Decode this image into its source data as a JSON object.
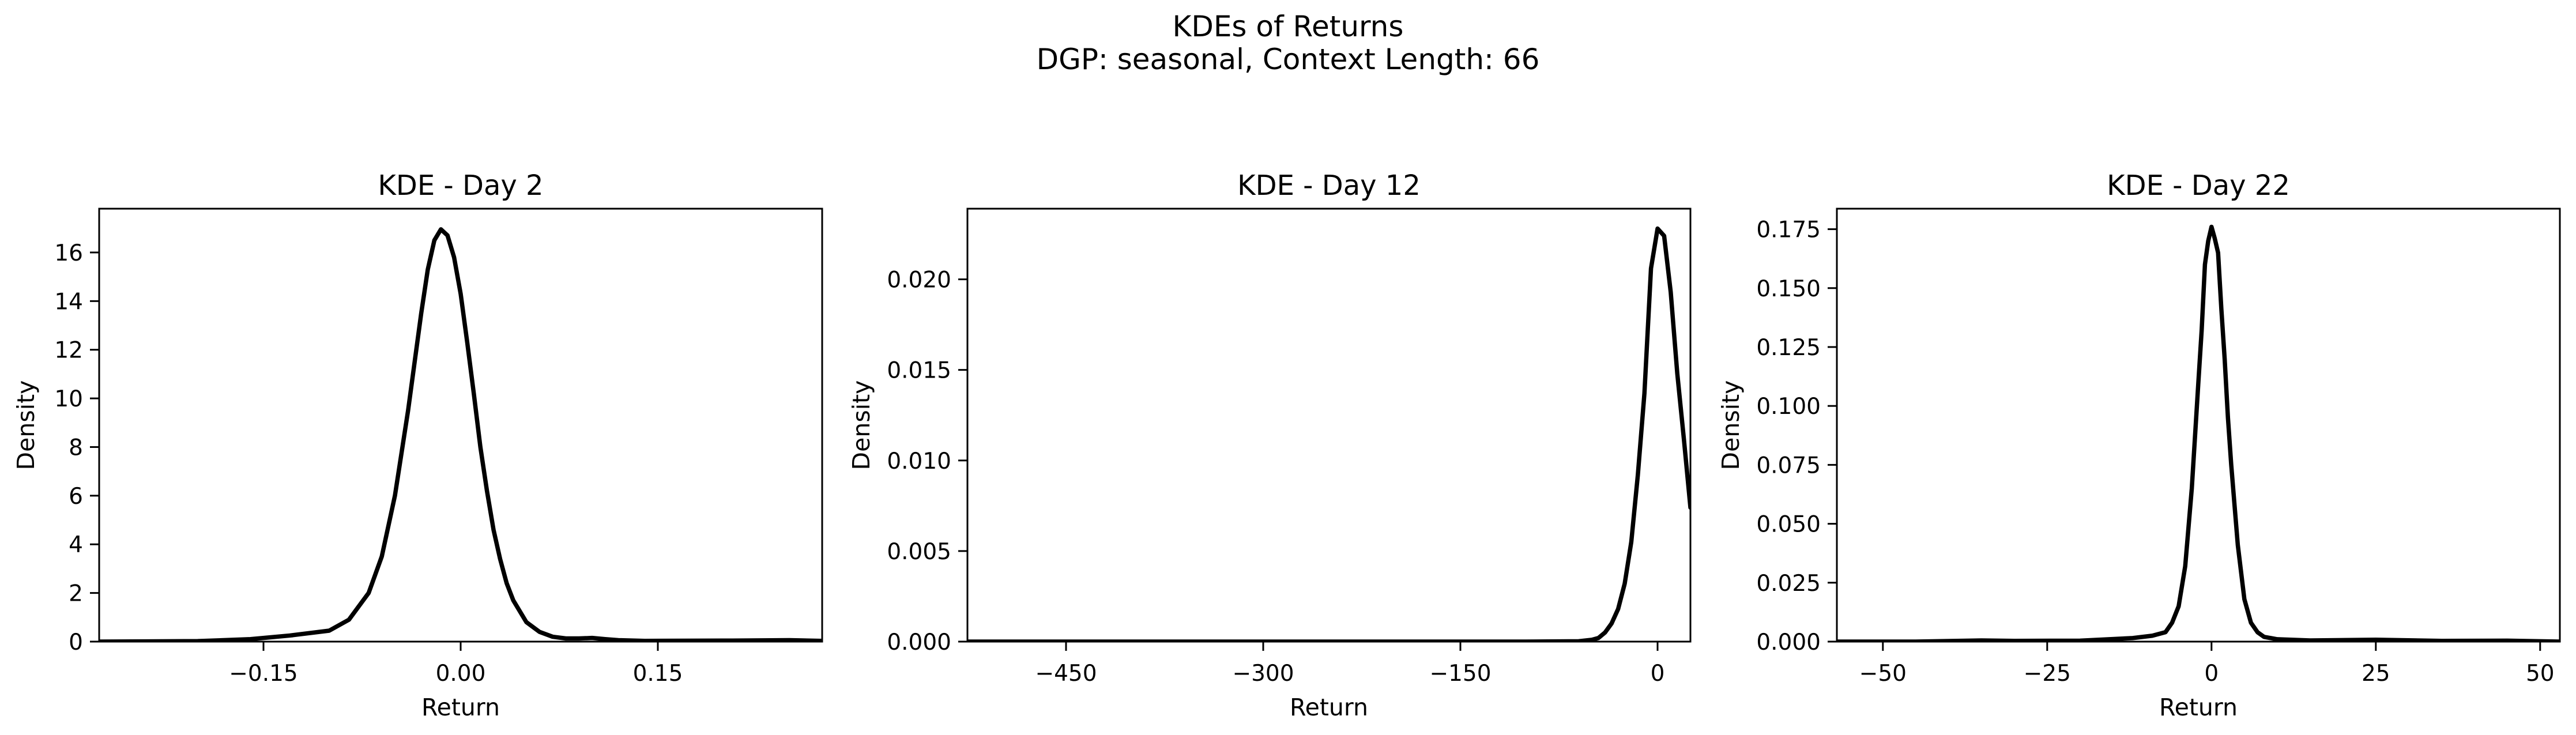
{
  "figure": {
    "title_line1": "KDEs of Returns",
    "title_line2": "DGP: seasonal, Context Length: 66"
  },
  "chart_data": [
    {
      "type": "line",
      "title": "KDE - Day 2",
      "xlabel": "Return",
      "ylabel": "Density",
      "xlim": [
        -0.275,
        0.275
      ],
      "ylim": [
        0,
        17.8
      ],
      "xticks": [
        -0.15,
        0.0,
        0.15
      ],
      "xtick_labels": [
        "−0.15",
        "0.00",
        "0.15"
      ],
      "yticks": [
        0,
        2,
        4,
        6,
        8,
        10,
        12,
        14,
        16
      ],
      "ytick_labels": [
        "0",
        "2",
        "4",
        "6",
        "8",
        "10",
        "12",
        "14",
        "16"
      ],
      "grid": false,
      "series": [
        {
          "color": "#000000",
          "x": [
            -0.275,
            -0.2,
            -0.16,
            -0.13,
            -0.1,
            -0.085,
            -0.07,
            -0.06,
            -0.05,
            -0.04,
            -0.03,
            -0.025,
            -0.02,
            -0.015,
            -0.01,
            -0.005,
            0.0,
            0.005,
            0.01,
            0.015,
            0.02,
            0.025,
            0.03,
            0.035,
            0.04,
            0.05,
            0.06,
            0.07,
            0.08,
            0.09,
            0.1,
            0.11,
            0.12,
            0.14,
            0.2,
            0.25,
            0.275
          ],
          "y": [
            0.0,
            0.02,
            0.1,
            0.25,
            0.45,
            0.9,
            2.0,
            3.5,
            6.0,
            9.5,
            13.5,
            15.3,
            16.5,
            16.95,
            16.7,
            15.8,
            14.3,
            12.3,
            10.2,
            8.0,
            6.2,
            4.6,
            3.4,
            2.4,
            1.7,
            0.8,
            0.4,
            0.2,
            0.13,
            0.13,
            0.15,
            0.1,
            0.06,
            0.03,
            0.04,
            0.06,
            0.03
          ]
        }
      ]
    },
    {
      "type": "line",
      "title": "KDE - Day 12",
      "xlabel": "Return",
      "ylabel": "Density",
      "xlim": [
        -525,
        25
      ],
      "ylim": [
        0,
        0.0239
      ],
      "xticks": [
        -450,
        -300,
        -150,
        0
      ],
      "xtick_labels": [
        "−450",
        "−300",
        "−150",
        "0"
      ],
      "yticks": [
        0.0,
        0.005,
        0.01,
        0.015,
        0.02
      ],
      "ytick_labels": [
        "0.000",
        "0.005",
        "0.010",
        "0.015",
        "0.020"
      ],
      "grid": false,
      "series": [
        {
          "color": "#000000",
          "x": [
            -525,
            -200,
            -100,
            -60,
            -50,
            -45,
            -40,
            -35,
            -30,
            -25,
            -20,
            -15,
            -10,
            -5,
            0,
            5,
            10,
            15,
            20,
            25
          ],
          "y": [
            0.0,
            0.0,
            0.0,
            2e-05,
            0.0001,
            0.0002,
            0.0005,
            0.001,
            0.0018,
            0.0032,
            0.0055,
            0.0092,
            0.0137,
            0.0206,
            0.0228,
            0.0224,
            0.0193,
            0.0148,
            0.0112,
            0.0074
          ]
        }
      ]
    },
    {
      "type": "line",
      "title": "KDE - Day 22",
      "xlabel": "Return",
      "ylabel": "Density",
      "xlim": [
        -57,
        53
      ],
      "ylim": [
        0,
        0.1837
      ],
      "xticks": [
        -50,
        -25,
        0,
        25,
        50
      ],
      "xtick_labels": [
        "−50",
        "−25",
        "0",
        "25",
        "50"
      ],
      "yticks": [
        0.0,
        0.025,
        0.05,
        0.075,
        0.1,
        0.125,
        0.15,
        0.175
      ],
      "ytick_labels": [
        "0.000",
        "0.025",
        "0.050",
        "0.075",
        "0.100",
        "0.125",
        "0.150",
        "0.175"
      ],
      "grid": false,
      "series": [
        {
          "color": "#000000",
          "x": [
            -57,
            -45,
            -35,
            -30,
            -20,
            -12,
            -9,
            -7,
            -6,
            -5,
            -4,
            -3,
            -2,
            -1.5,
            -1,
            -0.5,
            0,
            0.5,
            1,
            1.5,
            2,
            2.5,
            3,
            4,
            5,
            6,
            7,
            8,
            10,
            15,
            25,
            35,
            45,
            53
          ],
          "y": [
            0.0,
            0.0,
            0.0005,
            0.0003,
            0.0004,
            0.0015,
            0.0025,
            0.004,
            0.008,
            0.015,
            0.032,
            0.065,
            0.11,
            0.132,
            0.16,
            0.17,
            0.176,
            0.171,
            0.165,
            0.141,
            0.12,
            0.095,
            0.075,
            0.041,
            0.018,
            0.008,
            0.004,
            0.002,
            0.001,
            0.0005,
            0.0008,
            0.0003,
            0.0004,
            0.0
          ]
        }
      ]
    }
  ]
}
